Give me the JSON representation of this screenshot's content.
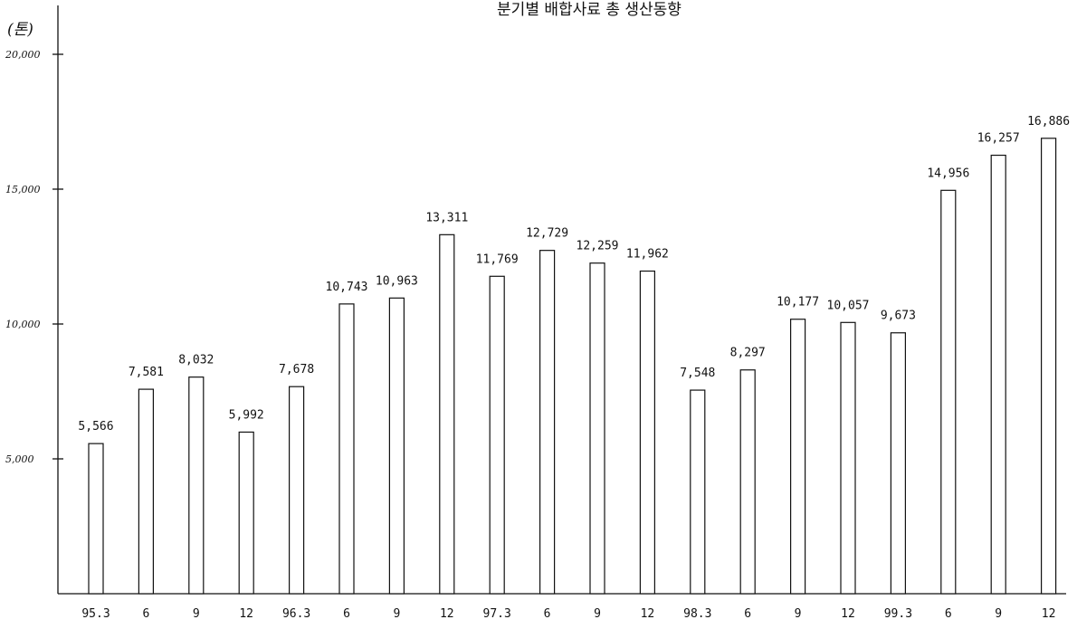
{
  "chart_data": {
    "type": "bar",
    "title": "분기별 배합사료 총 생산동향",
    "ylabel": "(톤)",
    "xlabel": "",
    "ylim": [
      0,
      20000
    ],
    "y_ticks": [
      {
        "value": 5000,
        "label": "5,000"
      },
      {
        "value": 10000,
        "label": "10,000"
      },
      {
        "value": 15000,
        "label": "15,000"
      },
      {
        "value": 20000,
        "label": "20,000"
      }
    ],
    "grid": false,
    "categories": [
      "95.3",
      "6",
      "9",
      "12",
      "96.3",
      "6",
      "9",
      "12",
      "97.3",
      "6",
      "9",
      "12",
      "98.3",
      "6",
      "9",
      "12",
      "99.3",
      "6",
      "9",
      "12"
    ],
    "values": [
      5566,
      7581,
      8032,
      5992,
      7678,
      10743,
      10963,
      13311,
      11769,
      12729,
      12259,
      11962,
      7548,
      8297,
      10177,
      10057,
      9673,
      14956,
      16257,
      16886
    ],
    "value_labels": [
      "5,566",
      "7,581",
      "8,032",
      "5,992",
      "7,678",
      "10,743",
      "10,963",
      "13,311",
      "11,769",
      "12,729",
      "12,259",
      "11,962",
      "7,548",
      "8,297",
      "10,177",
      "10,057",
      "9,673",
      "14,956",
      "16,257",
      "16,886"
    ]
  }
}
